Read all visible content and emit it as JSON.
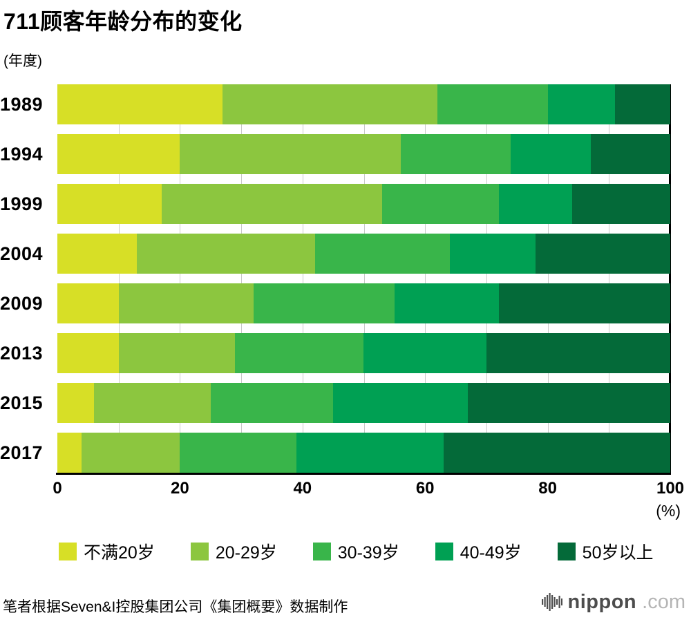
{
  "footer": {
    "source_note": "笔者根据Seven&I控股集团公司《集团概要》数据制作",
    "logo_primary": "nippon",
    "logo_secondary": ".com"
  },
  "chart_data": {
    "type": "bar",
    "orientation": "horizontal",
    "stacked": true,
    "title": "711顾客年龄分布的变化",
    "y_unit": "(年度)",
    "x_unit": "(%)",
    "categories": [
      "1989",
      "1994",
      "1999",
      "2004",
      "2009",
      "2013",
      "2015",
      "2017"
    ],
    "series": [
      {
        "name": "不满20岁",
        "color": "#d7df26",
        "values": [
          27,
          20,
          17,
          13,
          10,
          10,
          6,
          4
        ]
      },
      {
        "name": "20-29岁",
        "color": "#8cc63f",
        "values": [
          35,
          36,
          36,
          29,
          22,
          19,
          19,
          16
        ]
      },
      {
        "name": "30-39岁",
        "color": "#39b54a",
        "values": [
          18,
          18,
          19,
          22,
          23,
          21,
          20,
          19
        ]
      },
      {
        "name": "40-49岁",
        "color": "#00a053",
        "values": [
          11,
          13,
          12,
          14,
          17,
          20,
          22,
          24
        ]
      },
      {
        "name": "50岁以上",
        "color": "#046a39",
        "values": [
          9,
          13,
          16,
          22,
          28,
          30,
          33,
          37
        ]
      }
    ],
    "x_ticks": [
      0,
      20,
      40,
      60,
      80,
      100
    ],
    "xlim": [
      0,
      100
    ],
    "grid_step": 10,
    "legend_position": "bottom",
    "gridlines": true
  }
}
